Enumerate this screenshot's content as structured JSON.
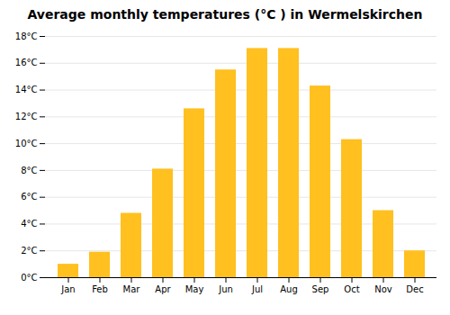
{
  "chart_data": {
    "type": "bar",
    "title": "Average monthly temperatures (°C ) in Wermelskirchen",
    "categories": [
      "Jan",
      "Feb",
      "Mar",
      "Apr",
      "May",
      "Jun",
      "Jul",
      "Aug",
      "Sep",
      "Oct",
      "Nov",
      "Dec"
    ],
    "values": [
      1.0,
      1.9,
      4.8,
      8.1,
      12.6,
      15.5,
      17.1,
      17.1,
      14.3,
      10.3,
      5.0,
      2.0
    ],
    "color": "#FFC020",
    "ylim": [
      0,
      18
    ],
    "yticks": [
      {
        "value": 0,
        "label": "0°C"
      },
      {
        "value": 2,
        "label": "2°C"
      },
      {
        "value": 4,
        "label": "4°C"
      },
      {
        "value": 6,
        "label": "6°C"
      },
      {
        "value": 8,
        "label": "8°C"
      },
      {
        "value": 10,
        "label": "10°C"
      },
      {
        "value": 12,
        "label": "12°C"
      },
      {
        "value": 14,
        "label": "14°C"
      },
      {
        "value": 16,
        "label": "16°C"
      },
      {
        "value": 18,
        "label": "18°C"
      }
    ],
    "grid": true
  }
}
